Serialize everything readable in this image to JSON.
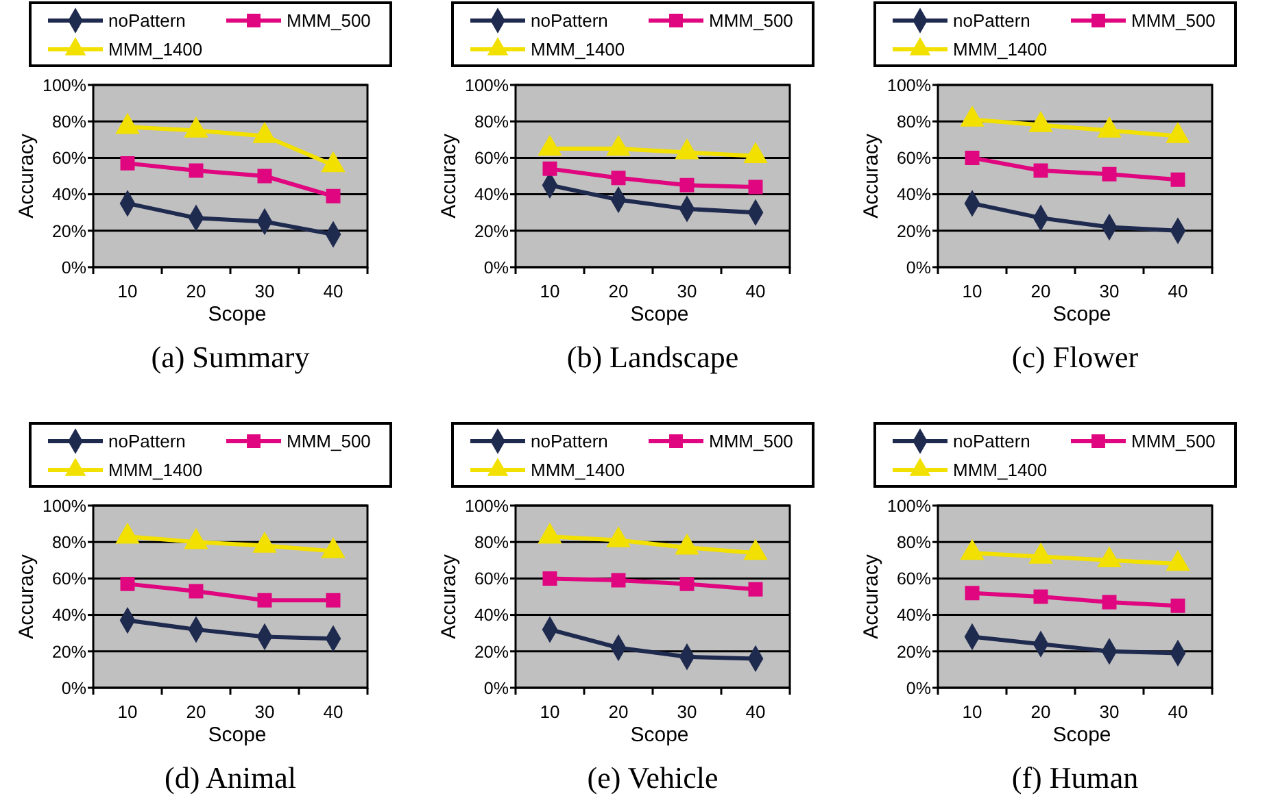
{
  "chart_data": [
    {
      "type": "line",
      "title": "(a) Summary",
      "xlabel": "Scope",
      "ylabel": "Accuracy",
      "categories": [
        "10",
        "20",
        "30",
        "40"
      ],
      "ylim": [
        0,
        100
      ],
      "yticks": [
        {
          "value": 0,
          "label": "0%"
        },
        {
          "value": 20,
          "label": "20%"
        },
        {
          "value": 40,
          "label": "40%"
        },
        {
          "value": 60,
          "label": "60%"
        },
        {
          "value": 80,
          "label": "80%"
        },
        {
          "value": 100,
          "label": "100%"
        }
      ],
      "grid": "y",
      "legend": "top",
      "series": [
        {
          "name": "noPattern",
          "color": "#1f2a4f",
          "marker": "diamond",
          "values": [
            35,
            27,
            25,
            18
          ]
        },
        {
          "name": "MMM_500",
          "color": "#e0067f",
          "marker": "square",
          "values": [
            57,
            53,
            50,
            39
          ]
        },
        {
          "name": "MMM_1400",
          "color": "#f2e000",
          "marker": "triangle",
          "values": [
            77,
            75,
            72,
            56
          ]
        }
      ]
    },
    {
      "type": "line",
      "title": "(b) Landscape",
      "xlabel": "Scope",
      "ylabel": "Accuracy",
      "categories": [
        "10",
        "20",
        "30",
        "40"
      ],
      "ylim": [
        0,
        100
      ],
      "yticks": [
        {
          "value": 0,
          "label": "0%"
        },
        {
          "value": 20,
          "label": "20%"
        },
        {
          "value": 40,
          "label": "40%"
        },
        {
          "value": 60,
          "label": "60%"
        },
        {
          "value": 80,
          "label": "80%"
        },
        {
          "value": 100,
          "label": "100%"
        }
      ],
      "grid": "y",
      "legend": "top",
      "series": [
        {
          "name": "noPattern",
          "color": "#1f2a4f",
          "marker": "diamond",
          "values": [
            45,
            37,
            32,
            30
          ]
        },
        {
          "name": "MMM_500",
          "color": "#e0067f",
          "marker": "square",
          "values": [
            54,
            49,
            45,
            44
          ]
        },
        {
          "name": "MMM_1400",
          "color": "#f2e000",
          "marker": "triangle",
          "values": [
            65,
            65,
            63,
            61
          ]
        }
      ]
    },
    {
      "type": "line",
      "title": "(c) Flower",
      "xlabel": "Scope",
      "ylabel": "Accuracy",
      "categories": [
        "10",
        "20",
        "30",
        "40"
      ],
      "ylim": [
        0,
        100
      ],
      "yticks": [
        {
          "value": 0,
          "label": "0%"
        },
        {
          "value": 20,
          "label": "20%"
        },
        {
          "value": 40,
          "label": "40%"
        },
        {
          "value": 60,
          "label": "60%"
        },
        {
          "value": 80,
          "label": "80%"
        },
        {
          "value": 100,
          "label": "100%"
        }
      ],
      "grid": "y",
      "legend": "top",
      "series": [
        {
          "name": "noPattern",
          "color": "#1f2a4f",
          "marker": "diamond",
          "values": [
            35,
            27,
            22,
            20
          ]
        },
        {
          "name": "MMM_500",
          "color": "#e0067f",
          "marker": "square",
          "values": [
            60,
            53,
            51,
            48
          ]
        },
        {
          "name": "MMM_1400",
          "color": "#f2e000",
          "marker": "triangle",
          "values": [
            81,
            78,
            75,
            72
          ]
        }
      ]
    },
    {
      "type": "line",
      "title": "(d) Animal",
      "xlabel": "Scope",
      "ylabel": "Accuracy",
      "categories": [
        "10",
        "20",
        "30",
        "40"
      ],
      "ylim": [
        0,
        100
      ],
      "yticks": [
        {
          "value": 0,
          "label": "0%"
        },
        {
          "value": 20,
          "label": "20%"
        },
        {
          "value": 40,
          "label": "40%"
        },
        {
          "value": 60,
          "label": "60%"
        },
        {
          "value": 80,
          "label": "80%"
        },
        {
          "value": 100,
          "label": "100%"
        }
      ],
      "grid": "y",
      "legend": "top",
      "series": [
        {
          "name": "noPattern",
          "color": "#1f2a4f",
          "marker": "diamond",
          "values": [
            37,
            32,
            28,
            27
          ]
        },
        {
          "name": "MMM_500",
          "color": "#e0067f",
          "marker": "square",
          "values": [
            57,
            53,
            48,
            48
          ]
        },
        {
          "name": "MMM_1400",
          "color": "#f2e000",
          "marker": "triangle",
          "values": [
            83,
            80,
            78,
            75
          ]
        }
      ]
    },
    {
      "type": "line",
      "title": "(e) Vehicle",
      "xlabel": "Scope",
      "ylabel": "Accuracy",
      "categories": [
        "10",
        "20",
        "30",
        "40"
      ],
      "ylim": [
        0,
        100
      ],
      "yticks": [
        {
          "value": 0,
          "label": "0%"
        },
        {
          "value": 20,
          "label": "20%"
        },
        {
          "value": 40,
          "label": "40%"
        },
        {
          "value": 60,
          "label": "60%"
        },
        {
          "value": 80,
          "label": "80%"
        },
        {
          "value": 100,
          "label": "100%"
        }
      ],
      "grid": "y",
      "legend": "top",
      "series": [
        {
          "name": "noPattern",
          "color": "#1f2a4f",
          "marker": "diamond",
          "values": [
            32,
            22,
            17,
            16
          ]
        },
        {
          "name": "MMM_500",
          "color": "#e0067f",
          "marker": "square",
          "values": [
            60,
            59,
            57,
            54
          ]
        },
        {
          "name": "MMM_1400",
          "color": "#f2e000",
          "marker": "triangle",
          "values": [
            83,
            81,
            77,
            74
          ]
        }
      ]
    },
    {
      "type": "line",
      "title": "(f) Human",
      "xlabel": "Scope",
      "ylabel": "Accuracy",
      "categories": [
        "10",
        "20",
        "30",
        "40"
      ],
      "ylim": [
        0,
        100
      ],
      "yticks": [
        {
          "value": 0,
          "label": "0%"
        },
        {
          "value": 20,
          "label": "20%"
        },
        {
          "value": 40,
          "label": "40%"
        },
        {
          "value": 60,
          "label": "60%"
        },
        {
          "value": 80,
          "label": "80%"
        },
        {
          "value": 100,
          "label": "100%"
        }
      ],
      "grid": "y",
      "legend": "top",
      "series": [
        {
          "name": "noPattern",
          "color": "#1f2a4f",
          "marker": "diamond",
          "values": [
            28,
            24,
            20,
            19
          ]
        },
        {
          "name": "MMM_500",
          "color": "#e0067f",
          "marker": "square",
          "values": [
            52,
            50,
            47,
            45
          ]
        },
        {
          "name": "MMM_1400",
          "color": "#f2e000",
          "marker": "triangle",
          "values": [
            74,
            72,
            70,
            68
          ]
        }
      ]
    }
  ]
}
